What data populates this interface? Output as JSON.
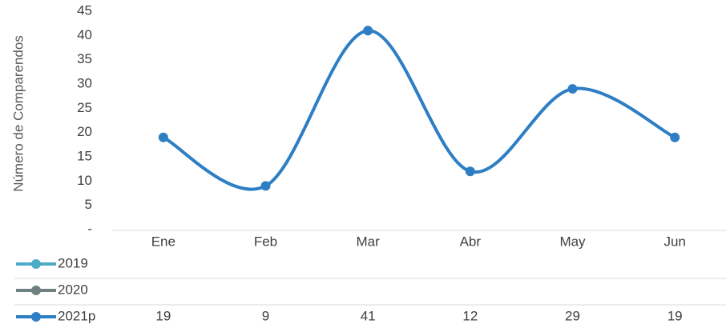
{
  "chart_data": {
    "type": "line",
    "categories": [
      "Ene",
      "Feb",
      "Mar",
      "Abr",
      "May",
      "Jun"
    ],
    "ylabel": "Número de Comparendos",
    "ylim": [
      0,
      45
    ],
    "yticks": [
      "-",
      "5",
      "10",
      "15",
      "20",
      "25",
      "30",
      "35",
      "40",
      "45"
    ],
    "grid": false,
    "legend_placement": "data-table-below",
    "series": [
      {
        "name": "2019",
        "values": [
          null,
          null,
          null,
          null,
          null,
          null
        ],
        "color": "#4bacc6",
        "table_values": [
          "",
          "",
          "",
          "",
          "",
          ""
        ]
      },
      {
        "name": "2020",
        "values": [
          null,
          null,
          null,
          null,
          null,
          null
        ],
        "color": "#6f8082",
        "table_values": [
          "",
          "",
          "",
          "",
          "",
          ""
        ]
      },
      {
        "name": "2021p",
        "values": [
          19,
          9,
          41,
          12,
          29,
          19
        ],
        "color": "#2e7ec4",
        "table_values": [
          "19",
          "9",
          "41",
          "12",
          "29",
          "19"
        ]
      }
    ]
  }
}
